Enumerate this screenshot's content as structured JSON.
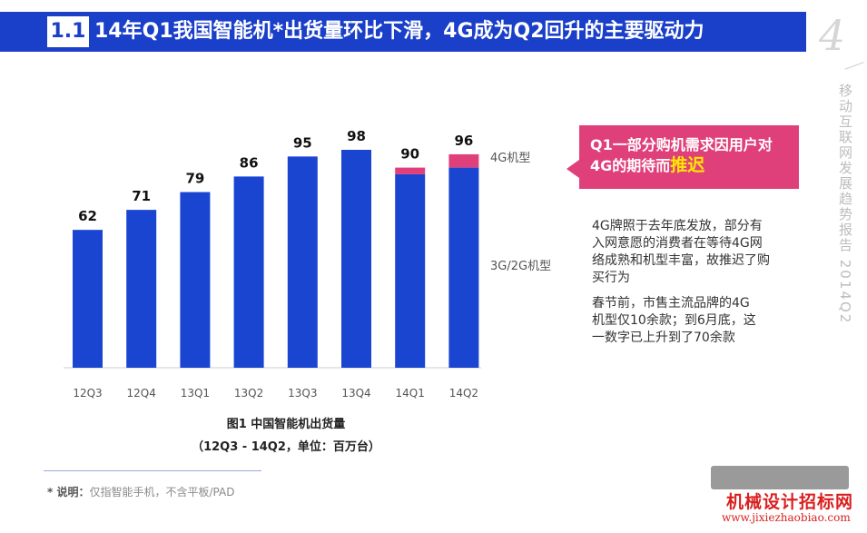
{
  "header": {
    "section": "1.1",
    "title": "14年Q1我国智能机*出货量环比下滑，4G成为Q2回升的主要驱动力",
    "page_number": "4"
  },
  "sidebar": {
    "vertical_text": "移动互联网发展趋势报告 2014Q2"
  },
  "chart_data": {
    "type": "bar",
    "stacked": true,
    "categories": [
      "12Q3",
      "12Q4",
      "13Q1",
      "13Q2",
      "13Q3",
      "13Q4",
      "14Q1",
      "14Q2"
    ],
    "totals": [
      62,
      71,
      79,
      86,
      95,
      98,
      90,
      96
    ],
    "series": [
      {
        "name": "3G/2G机型",
        "values": [
          62,
          71,
          79,
          86,
          95,
          98,
          87,
          90
        ],
        "color": "#1a45d1"
      },
      {
        "name": "4G机型",
        "values": [
          0,
          0,
          0,
          0,
          0,
          0,
          3,
          6
        ],
        "color": "#e0407a"
      }
    ],
    "ylim": [
      0,
      100
    ],
    "grid": false,
    "legend_placement": "right of bars",
    "caption": "图1 中国智能机出货量",
    "caption_units": "（12Q3 - 14Q2，单位：百万台）"
  },
  "callout": {
    "text": "Q1一部分购机需求因用户对4G的期待而",
    "highlight": "推迟"
  },
  "notes": [
    "4G牌照于去年底发放，部分有入网意愿的消费者在等待4G网络成熟和机型丰富，故推迟了购买行为",
    "春节前，市售主流品牌的4G机型仅10余款；到6月底，这一数字已上升到了70余款"
  ],
  "footnote": {
    "label": "* 说明：",
    "text": "仅指智能手机，不含平板/PAD"
  },
  "watermark": {
    "cn": "机械设计招标网",
    "url": "www.jixiezhaobiao.com"
  },
  "colors": {
    "header": "#1a3fc8",
    "bar_3g": "#1a45d1",
    "bar_4g": "#e0407a",
    "callout": "#e0407a",
    "highlight": "#ffe600"
  }
}
